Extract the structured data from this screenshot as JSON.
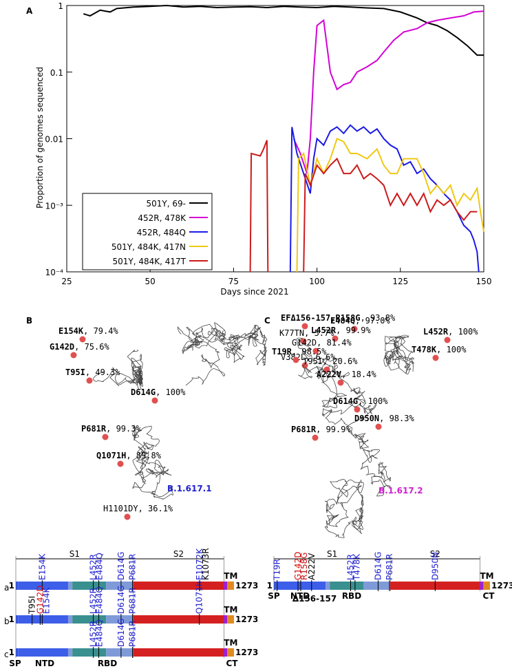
{
  "chart_data": {
    "type": "line",
    "panel": "A",
    "xlabel": "Days since 2021",
    "ylabel": "Proportion of genomes sequenced",
    "log_y": true,
    "xlim": [
      25,
      150
    ],
    "ylim": [
      0.0001,
      1
    ],
    "xticks": [
      25,
      50,
      75,
      100,
      125,
      150
    ],
    "yticks": [
      {
        "value": 0.0001,
        "label": "10⁻⁴"
      },
      {
        "value": 0.001,
        "label": "10⁻³"
      },
      0.01,
      0.1,
      1
    ],
    "legend": "bottom-left",
    "series": [
      {
        "name": "501Y, 69-",
        "color": "#000000",
        "x": [
          30,
          32,
          35,
          38,
          40,
          45,
          50,
          55,
          60,
          65,
          70,
          75,
          80,
          85,
          90,
          95,
          100,
          105,
          110,
          115,
          120,
          125,
          130,
          133,
          136,
          139,
          142,
          145,
          148,
          150
        ],
        "values": [
          0.75,
          0.7,
          0.85,
          0.8,
          0.9,
          0.95,
          0.97,
          1,
          0.95,
          0.97,
          0.93,
          0.95,
          0.96,
          0.93,
          0.97,
          0.95,
          0.93,
          0.97,
          0.95,
          0.92,
          0.9,
          0.8,
          0.65,
          0.55,
          0.5,
          0.42,
          0.33,
          0.25,
          0.18,
          0.18
        ]
      },
      {
        "name": "452R, 478K",
        "color": "#d400d4",
        "x": [
          93,
          95,
          97,
          98,
          99,
          100,
          102,
          104,
          106,
          108,
          110,
          112,
          115,
          118,
          120,
          123,
          126,
          130,
          133,
          136,
          140,
          144,
          147,
          150
        ],
        "values": [
          0.01,
          0.006,
          0.003,
          0.01,
          0.1,
          0.5,
          0.6,
          0.1,
          0.055,
          0.065,
          0.07,
          0.1,
          0.12,
          0.15,
          0.2,
          0.3,
          0.4,
          0.45,
          0.55,
          0.6,
          0.65,
          0.7,
          0.8,
          0.82
        ]
      },
      {
        "name": "452R, 484Q",
        "color": "#1a1ae6",
        "x": [
          92,
          92.5,
          94,
          96,
          98,
          99,
          100,
          102,
          104,
          106,
          108,
          110,
          112,
          114,
          116,
          118,
          120,
          122,
          124,
          126,
          128,
          130,
          132,
          134,
          136,
          138,
          140,
          142,
          144,
          146,
          147,
          148,
          148.5
        ],
        "values": [
          0.0001,
          0.015,
          0.006,
          0.003,
          0.0015,
          0.005,
          0.01,
          0.008,
          0.013,
          0.015,
          0.012,
          0.016,
          0.013,
          0.015,
          0.012,
          0.014,
          0.01,
          0.008,
          0.007,
          0.004,
          0.0045,
          0.003,
          0.0035,
          0.0025,
          0.002,
          0.0015,
          0.0012,
          0.0008,
          0.0005,
          0.0004,
          0.0003,
          0.0002,
          0.0001
        ]
      },
      {
        "name": "501Y, 484K, 417N",
        "color": "#f0c814",
        "x": [
          94,
          94.5,
          96,
          98,
          100,
          102,
          104,
          106,
          108,
          110,
          112,
          115,
          118,
          120,
          122,
          124,
          126,
          128,
          130,
          132,
          134,
          136,
          138,
          140,
          142,
          144,
          146,
          148,
          149,
          150
        ],
        "values": [
          0.0001,
          0.005,
          0.006,
          0.002,
          0.005,
          0.003,
          0.005,
          0.01,
          0.009,
          0.006,
          0.006,
          0.005,
          0.007,
          0.004,
          0.003,
          0.003,
          0.005,
          0.005,
          0.005,
          0.003,
          0.0015,
          0.002,
          0.0015,
          0.002,
          0.001,
          0.0015,
          0.0012,
          0.0018,
          0.0008,
          0.0004
        ]
      },
      {
        "name": "501Y, 484K, 417T",
        "color": "#cc1a1a",
        "x": [
          80,
          80.3,
          83,
          84,
          85,
          85.3,
          90,
          96,
          96.5,
          98,
          100,
          102,
          104,
          106,
          108,
          110,
          112,
          114,
          116,
          118,
          120,
          122,
          124,
          126,
          128,
          130,
          132,
          134,
          136,
          138,
          140,
          142,
          144,
          146,
          148
        ],
        "values": [
          0.0001,
          0.006,
          0.0055,
          0.007,
          0.0095,
          0.0001,
          null,
          0.0001,
          0.003,
          0.002,
          0.004,
          0.003,
          0.004,
          0.005,
          0.003,
          0.003,
          0.004,
          0.0025,
          0.003,
          0.0025,
          0.002,
          0.001,
          0.0015,
          0.001,
          0.0015,
          0.001,
          0.0015,
          0.0008,
          0.0012,
          0.001,
          0.0012,
          0.0008,
          0.0006,
          0.0008,
          0.0008
        ]
      }
    ]
  },
  "structures": [
    {
      "panel": "B",
      "variant": "B.1.617.1",
      "variant_color": "#2020d0",
      "labels": [
        {
          "mutation": "E154K",
          "rest": ", 79.4%",
          "bold": true
        },
        {
          "mutation": "G142D",
          "rest": ", 75.6%",
          "bold": true
        },
        {
          "mutation": "T95I",
          "rest": ", 49.3%",
          "bold": true
        },
        {
          "mutation": "E484Q",
          "rest": ", 97.0%",
          "bold": true
        },
        {
          "mutation": "L452R",
          "rest": ", 99.9%",
          "bold": true
        },
        {
          "mutation": "V382L",
          "rest": ", 6.6%",
          "bold": false
        },
        {
          "mutation": "D614G",
          "rest": ", 100%",
          "bold": true
        },
        {
          "mutation": "P681R",
          "rest": ", 99.3%",
          "bold": true
        },
        {
          "mutation": "Q1071H",
          "rest": ", 89.8%",
          "bold": true
        },
        {
          "mutation": "H1101DY",
          "rest": ", 36.1%",
          "bold": false
        }
      ]
    },
    {
      "panel": "C",
      "variant": "B.1.617.2",
      "variant_color": "#d020d0",
      "labels": [
        {
          "mutation": "EFΔ156-157,R158G",
          "rest": ", 93.8%",
          "bold": true
        },
        {
          "mutation": "K77TN",
          "rest": ", 5.7%",
          "bold": false
        },
        {
          "mutation": "G142D",
          "rest": ", 81.4%",
          "bold": false
        },
        {
          "mutation": "L452R",
          "rest": ", 100%",
          "bold": true
        },
        {
          "mutation": "T19R",
          "rest": ", 98.5%",
          "bold": true
        },
        {
          "mutation": "T95I",
          "rest": ", 20.6%",
          "bold": false
        },
        {
          "mutation": "T478K",
          "rest": ", 100%",
          "bold": true
        },
        {
          "mutation": "A222V",
          "rest": ", 18.4%",
          "bold": true
        },
        {
          "mutation": "D614G",
          "rest": ", 100%",
          "bold": true
        },
        {
          "mutation": "D950N",
          "rest": ", 98.3%",
          "bold": true
        },
        {
          "mutation": "P681R",
          "rest": ", 99.9%",
          "bold": true
        }
      ]
    }
  ],
  "domain_maps": [
    {
      "s1": "S1",
      "s2": "S2",
      "tm": "TM",
      "start": "1",
      "end": "1273",
      "regions": [
        "SP",
        "NTD",
        "RBD",
        "CT"
      ],
      "rows": [
        {
          "label": "a",
          "mutations": [
            {
              "text": "E154K",
              "color": "#2020d0"
            },
            {
              "text": "L452R",
              "color": "#2020d0"
            },
            {
              "text": "E484Q",
              "color": "#2020d0"
            },
            {
              "text": "D614G",
              "color": "#2020d0"
            },
            {
              "text": "P681R",
              "color": "#2020d0"
            },
            {
              "text": "E1072K",
              "color": "#2020d0"
            },
            {
              "text": "K1073R",
              "color": "#000000"
            }
          ]
        },
        {
          "label": "b",
          "mutations": [
            {
              "text": "T95I",
              "color": "#000000"
            },
            {
              "text": "G142D",
              "color": "#d01010"
            },
            {
              "text": "E154K",
              "color": "#2020d0"
            },
            {
              "text": "L452R",
              "color": "#2020d0"
            },
            {
              "text": "E484Q",
              "color": "#2020d0"
            },
            {
              "text": "D614G",
              "color": "#2020d0"
            },
            {
              "text": "P681R",
              "color": "#2020d0"
            },
            {
              "text": "Q1071h",
              "color": "#2020d0"
            }
          ]
        },
        {
          "label": "c",
          "mutations": [
            {
              "text": "L452R",
              "color": "#2020d0"
            },
            {
              "text": "E484Q",
              "color": "#2020d0"
            },
            {
              "text": "D614G",
              "color": "#2020d0"
            },
            {
              "text": "P681R",
              "color": "#2020d0"
            }
          ]
        }
      ]
    },
    {
      "s1": "S1",
      "s2": "S2",
      "tm": "TM",
      "start": "1",
      "end": "1273",
      "regions": [
        "SP",
        "NTD",
        "Δ156-157",
        "RBD",
        "CT"
      ],
      "rows": [
        {
          "mutations": [
            {
              "text": "T19R",
              "color": "#2020d0"
            },
            {
              "text": "G142D",
              "color": "#d01010"
            },
            {
              "text": "R158G",
              "color": "#d01010"
            },
            {
              "text": "A222V",
              "color": "#000000"
            },
            {
              "text": "L452R",
              "color": "#2020d0"
            },
            {
              "text": "T478K",
              "color": "#2020d0"
            },
            {
              "text": "D614G",
              "color": "#2020d0"
            },
            {
              "text": "P681R",
              "color": "#2020d0"
            },
            {
              "text": "D950N",
              "color": "#2020d0"
            }
          ]
        }
      ]
    }
  ]
}
